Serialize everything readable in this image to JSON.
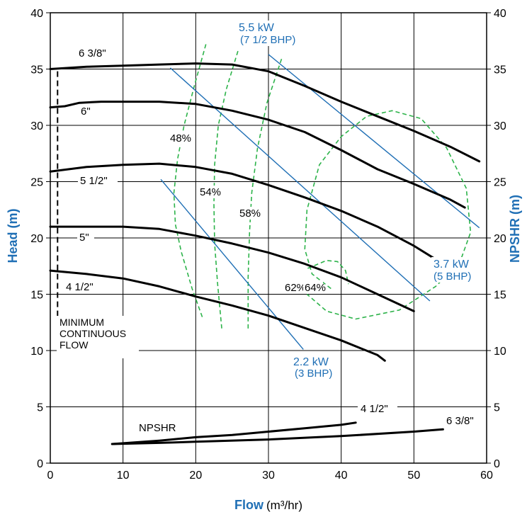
{
  "chart_data": {
    "type": "line",
    "xlabel": "Flow",
    "xlabel_unit": "(m³/hr)",
    "ylabel_left": "Head (m)",
    "ylabel_right": "NPSHR (m)",
    "xlim": [
      0,
      60
    ],
    "ylim": [
      0,
      40
    ],
    "xticks": [
      "0",
      "10",
      "20",
      "30",
      "40",
      "50",
      "60"
    ],
    "yticks": [
      "0",
      "5",
      "10",
      "15",
      "20",
      "25",
      "30",
      "35",
      "40"
    ],
    "grid": true,
    "colors": {
      "curve": "#000000",
      "power": "#1f6fb5",
      "efficiency": "#2db34a"
    },
    "head_curves": [
      {
        "name": "6 3/8\"",
        "points": [
          [
            0,
            35
          ],
          [
            5,
            35.2
          ],
          [
            10,
            35.3
          ],
          [
            15,
            35.4
          ],
          [
            20,
            35.5
          ],
          [
            25,
            35.4
          ],
          [
            30,
            34.8
          ],
          [
            35,
            33.5
          ],
          [
            40,
            32.1
          ],
          [
            45,
            30.8
          ],
          [
            50,
            29.5
          ],
          [
            55,
            28.1
          ],
          [
            59,
            26.8
          ]
        ]
      },
      {
        "name": "6\"",
        "points": [
          [
            0,
            31.6
          ],
          [
            2,
            31.7
          ],
          [
            4,
            32
          ],
          [
            7,
            32.1
          ],
          [
            10,
            32.1
          ],
          [
            15,
            32.1
          ],
          [
            20,
            31.9
          ],
          [
            25,
            31.3
          ],
          [
            30,
            30.5
          ],
          [
            35,
            29.4
          ],
          [
            40,
            27.8
          ],
          [
            45,
            26.1
          ],
          [
            50,
            24.8
          ],
          [
            55,
            23.4
          ],
          [
            57,
            22.7
          ]
        ]
      },
      {
        "name": "5 1/2\"",
        "points": [
          [
            0,
            25.9
          ],
          [
            5,
            26.3
          ],
          [
            10,
            26.5
          ],
          [
            15,
            26.6
          ],
          [
            20,
            26.3
          ],
          [
            25,
            25.7
          ],
          [
            30,
            24.7
          ],
          [
            35,
            23.6
          ],
          [
            40,
            22.4
          ],
          [
            45,
            21
          ],
          [
            50,
            19.3
          ],
          [
            53,
            18.1
          ]
        ]
      },
      {
        "name": "5\"",
        "points": [
          [
            0,
            21
          ],
          [
            5,
            21
          ],
          [
            10,
            21
          ],
          [
            15,
            20.8
          ],
          [
            20,
            20.2
          ],
          [
            25,
            19.5
          ],
          [
            30,
            18.7
          ],
          [
            35,
            17.7
          ],
          [
            40,
            16.5
          ],
          [
            45,
            15
          ],
          [
            50,
            13.5
          ]
        ]
      },
      {
        "name": "4 1/2\"",
        "points": [
          [
            0,
            17.1
          ],
          [
            5,
            16.8
          ],
          [
            10,
            16.4
          ],
          [
            15,
            15.7
          ],
          [
            20,
            14.8
          ],
          [
            25,
            14
          ],
          [
            30,
            13.1
          ],
          [
            35,
            12
          ],
          [
            40,
            10.9
          ],
          [
            45,
            9.6
          ],
          [
            46,
            9.1
          ]
        ]
      }
    ],
    "npshr_curves": [
      {
        "name": "4 1/2\"",
        "points": [
          [
            8.5,
            1.7
          ],
          [
            15,
            2
          ],
          [
            20,
            2.3
          ],
          [
            25,
            2.5
          ],
          [
            30,
            2.8
          ],
          [
            35,
            3.1
          ],
          [
            40,
            3.4
          ],
          [
            42,
            3.6
          ]
        ]
      },
      {
        "name": "6 3/8\"",
        "points": [
          [
            8.5,
            1.7
          ],
          [
            15,
            1.8
          ],
          [
            20,
            1.9
          ],
          [
            30,
            2.1
          ],
          [
            40,
            2.4
          ],
          [
            50,
            2.8
          ],
          [
            54,
            3
          ]
        ]
      }
    ],
    "npshr_label": "NPSHR",
    "power_lines": [
      {
        "label": "2.2 kW",
        "sublabel": "(3 BHP)",
        "from": [
          15.2,
          25.2
        ],
        "to": [
          34.8,
          10.1
        ]
      },
      {
        "label": "5.5 kW",
        "sublabel": "(7 1/2 BHP)",
        "from": [
          16.5,
          35.1
        ],
        "to": [
          52.2,
          14.4
        ]
      },
      {
        "label": "3.7 kW",
        "sublabel": "(5 BHP)",
        "from": [
          30,
          36.3
        ],
        "to": [
          59,
          20.9
        ]
      }
    ],
    "efficiency_labels": [
      "48%",
      "54%",
      "58%",
      "62%",
      "64%"
    ],
    "efficiency_curves": [
      {
        "label": "48%",
        "points": [
          [
            21.4,
            37.2
          ],
          [
            19.8,
            33.5
          ],
          [
            18.4,
            30
          ],
          [
            17.5,
            27
          ],
          [
            17,
            24
          ],
          [
            17.2,
            21.2
          ],
          [
            18,
            18.8
          ],
          [
            19.5,
            15.5
          ],
          [
            21,
            12.8
          ]
        ]
      },
      {
        "label": "54%",
        "points": [
          [
            25.8,
            36.6
          ],
          [
            24.2,
            33.2
          ],
          [
            23.1,
            30
          ],
          [
            22.6,
            26.5
          ],
          [
            22.5,
            23
          ],
          [
            22.6,
            19.5
          ],
          [
            23,
            16
          ],
          [
            23.6,
            11.8
          ]
        ]
      },
      {
        "label": "58%",
        "points": [
          [
            31.8,
            35.9
          ],
          [
            29.8,
            32
          ],
          [
            28.5,
            28
          ],
          [
            27.7,
            24
          ],
          [
            27.4,
            20.5
          ],
          [
            27.2,
            16.5
          ],
          [
            27.2,
            11.9
          ]
        ]
      },
      {
        "label": "62%",
        "points": [
          [
            35.4,
            17.3
          ],
          [
            36.5,
            17.6
          ],
          [
            38,
            18
          ],
          [
            39.5,
            17.9
          ],
          [
            40.6,
            17.1
          ],
          [
            41,
            15.9
          ]
        ]
      },
      {
        "label": "64%",
        "points": [
          [
            38.6,
            15.5
          ],
          [
            36,
            16.8
          ],
          [
            35,
            19
          ],
          [
            35.3,
            22.5
          ],
          [
            37,
            26.5
          ],
          [
            40,
            29
          ],
          [
            43.5,
            30.8
          ],
          [
            47,
            31.3
          ],
          [
            51,
            30.6
          ],
          [
            54.5,
            28
          ],
          [
            57.2,
            24.4
          ],
          [
            57.8,
            20.5
          ],
          [
            56.3,
            17.8
          ],
          [
            53,
            15.7
          ],
          [
            48,
            13.6
          ],
          [
            42,
            12.8
          ],
          [
            38,
            13.5
          ],
          [
            35.3,
            15
          ]
        ]
      }
    ],
    "min_flow_x": 1,
    "min_flow_label": [
      "MINIMUM",
      "CONTINUOUS",
      "FLOW"
    ],
    "diameter_labels": [
      "6 3/8\"",
      "6\"",
      "5 1/2\"",
      "5\"",
      "4 1/2\""
    ]
  }
}
